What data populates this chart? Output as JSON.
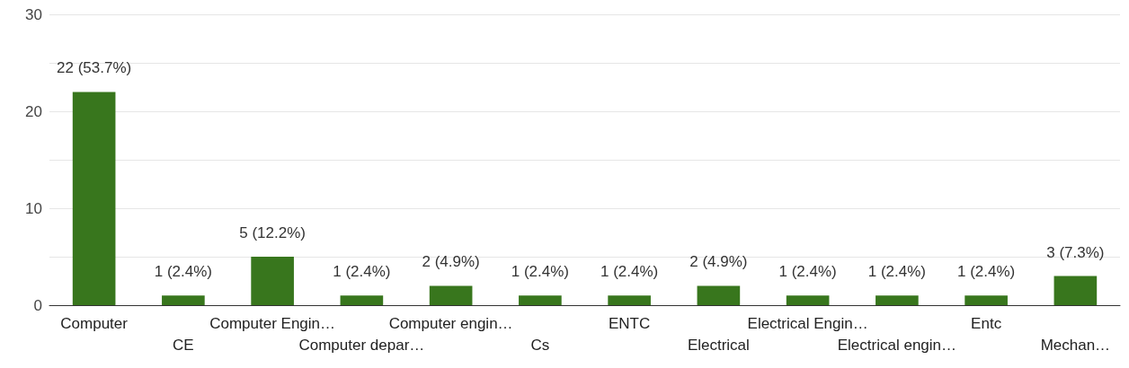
{
  "chart_data": {
    "type": "bar",
    "categories": [
      "Computer",
      "CE",
      "Computer Engin…",
      "Computer depar…",
      "Computer engin…",
      "Cs",
      "ENTC",
      "Electrical",
      "Electrical Engin…",
      "Electrical engin…",
      "Entc",
      "Mechan…"
    ],
    "values": [
      22,
      1,
      5,
      1,
      2,
      1,
      1,
      2,
      1,
      1,
      1,
      3
    ],
    "value_labels": [
      "22 (53.7%)",
      "1 (2.4%)",
      "5 (12.2%)",
      "1 (2.4%)",
      "2 (4.9%)",
      "1 (2.4%)",
      "1 (2.4%)",
      "2 (4.9%)",
      "1 (2.4%)",
      "1 (2.4%)",
      "1 (2.4%)",
      "3 (7.3%)"
    ],
    "color": "#38761d",
    "ylim": [
      0,
      30
    ],
    "yticks": [
      0,
      {
        "value": 5,
        "label": null
      },
      10,
      {
        "value": 15,
        "label": null
      },
      20,
      {
        "value": 25,
        "label": null
      },
      30
    ],
    "grid": "y"
  }
}
